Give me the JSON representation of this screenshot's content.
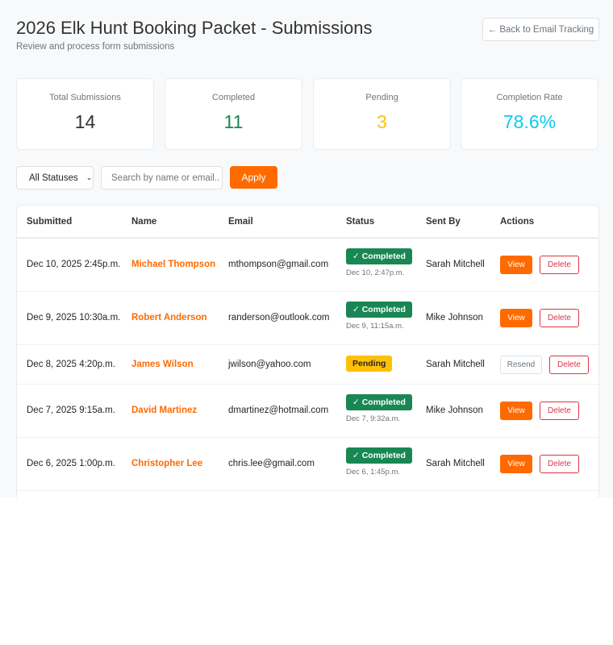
{
  "header": {
    "title": "2026 Elk Hunt Booking Packet - Submissions",
    "subtitle": "Review and process form submissions",
    "back_label": "← Back to Email Tracking"
  },
  "stats": [
    {
      "label": "Total Submissions",
      "value": "14",
      "color": "#333333"
    },
    {
      "label": "Completed",
      "value": "11",
      "color": "#198754"
    },
    {
      "label": "Pending",
      "value": "3",
      "color": "#ffc107"
    },
    {
      "label": "Completion Rate",
      "value": "78.6%",
      "color": "#0dcaf0"
    }
  ],
  "filters": {
    "status_selected": "All Statuses",
    "search_placeholder": "Search by name or email..",
    "apply_label": "Apply"
  },
  "table": {
    "columns": [
      "Submitted",
      "Name",
      "Email",
      "Status",
      "Sent By",
      "Actions"
    ],
    "rows": [
      {
        "submitted": "Dec 10, 2025 2:45p.m.",
        "name": "Michael Thompson",
        "email": "mthompson@gmail.com",
        "status": "✓ Completed",
        "status_date": "Dec 10, 2:47p.m.",
        "sent_by": "Sarah Mitchell",
        "action1": "View",
        "action2": "Delete"
      },
      {
        "submitted": "Dec 9, 2025 10:30a.m.",
        "name": "Robert Anderson",
        "email": "randerson@outlook.com",
        "status": "✓ Completed",
        "status_date": "Dec 9, 11:15a.m.",
        "sent_by": "Mike Johnson",
        "action1": "View",
        "action2": "Delete"
      },
      {
        "submitted": "Dec 8, 2025 4:20p.m.",
        "name": "James Wilson",
        "email": "jwilson@yahoo.com",
        "status": "Pending",
        "status_date": "",
        "sent_by": "Sarah Mitchell",
        "action1": "Resend",
        "action2": "Delete"
      },
      {
        "submitted": "Dec 7, 2025 9:15a.m.",
        "name": "David Martinez",
        "email": "dmartinez@hotmail.com",
        "status": "✓ Completed",
        "status_date": "Dec 7, 9:32a.m.",
        "sent_by": "Mike Johnson",
        "action1": "View",
        "action2": "Delete"
      },
      {
        "submitted": "Dec 6, 2025 1:00p.m.",
        "name": "Christopher Lee",
        "email": "chris.lee@gmail.com",
        "status": "✓ Completed",
        "status_date": "Dec 6, 1:45p.m.",
        "sent_by": "Sarah Mitchell",
        "action1": "View",
        "action2": "Delete"
      }
    ]
  }
}
